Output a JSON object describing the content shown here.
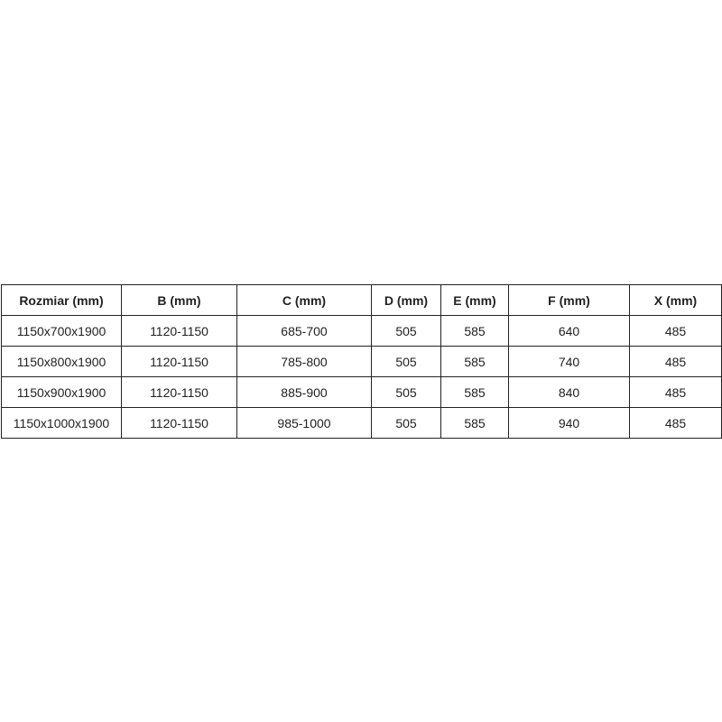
{
  "table": {
    "headers": [
      "Rozmiar (mm)",
      "B (mm)",
      "C (mm)",
      "D (mm)",
      "E (mm)",
      "F (mm)",
      "X (mm)"
    ],
    "rows": [
      [
        "1150x700x1900",
        "1120-1150",
        "685-700",
        "505",
        "585",
        "640",
        "485"
      ],
      [
        "1150x800x1900",
        "1120-1150",
        "785-800",
        "505",
        "585",
        "740",
        "485"
      ],
      [
        "1150x900x1900",
        "1120-1150",
        "885-900",
        "505",
        "585",
        "840",
        "485"
      ],
      [
        "1150x1000x1900",
        "1120-1150",
        "985-1000",
        "505",
        "585",
        "940",
        "485"
      ]
    ]
  }
}
